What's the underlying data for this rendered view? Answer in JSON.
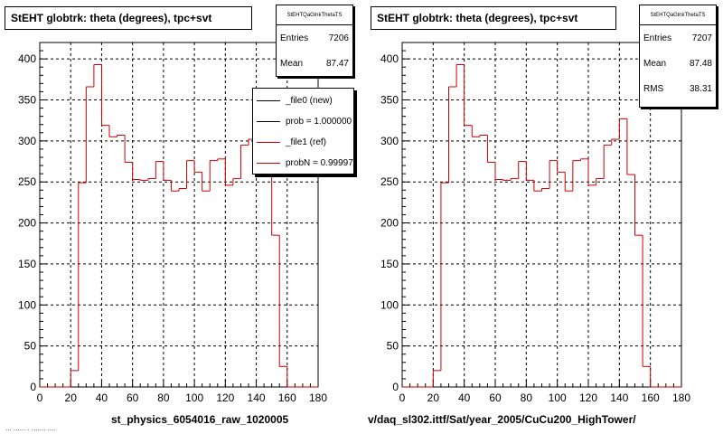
{
  "panels": [
    {
      "title": "StEHT globtrk: theta (degrees), tpc+svt",
      "stats": {
        "name": "StEHTQaGlnkThetaTS",
        "rows": [
          {
            "label": "Entries",
            "value": "7206"
          },
          {
            "label": "Mean",
            "value": "87.47"
          }
        ]
      },
      "footer": "st_physics_6054016_raw_1020005"
    },
    {
      "title": "StEHT globtrk: theta (degrees), tpc+svt",
      "stats": {
        "name": "StEHTQaGlnkThetaTS",
        "rows": [
          {
            "label": "Entries",
            "value": "7207"
          },
          {
            "label": "Mean",
            "value": "87.48"
          },
          {
            "label": "RMS",
            "value": "38.31"
          }
        ]
      },
      "footer": "v/daq_sl302.ittf/Sat/year_2005/CuCu200_HighTower/"
    }
  ],
  "legend": {
    "entries": [
      {
        "label": "_file0 (new)",
        "color": "#000000"
      },
      {
        "label": "prob = 1.000000",
        "color": "#000000"
      },
      {
        "label": "_file1 (ref)",
        "color": "#cc0000"
      },
      {
        "label": "probN = 0.999974",
        "color": "#cc0000"
      }
    ]
  },
  "cropped_text": "... ...... . ....... ....",
  "colors": {
    "histogram": "#cc0000",
    "axis": "#000000",
    "grid": "#000000"
  },
  "chart_data": [
    {
      "type": "histogram",
      "title": "StEHT globtrk: theta (degrees), tpc+svt",
      "xlabel": "st_physics_6054016_raw_1020005",
      "ylabel": "",
      "xlim": [
        0,
        180
      ],
      "ylim": [
        0,
        420
      ],
      "xticks": [
        0,
        20,
        40,
        60,
        80,
        100,
        120,
        140,
        160,
        180
      ],
      "yticks": [
        0,
        50,
        100,
        150,
        200,
        250,
        300,
        350,
        400
      ],
      "grid": true,
      "bin_width": 5,
      "series": [
        {
          "x": [
            0,
            5,
            10,
            15,
            20,
            25,
            30,
            35,
            40,
            45,
            50,
            55,
            60,
            65,
            70,
            75,
            80,
            85,
            90,
            95,
            100,
            105,
            110,
            115,
            120,
            125,
            130,
            135,
            140,
            145,
            150,
            155,
            160,
            165,
            170,
            175
          ],
          "values": [
            0,
            0,
            0,
            0,
            20,
            249,
            366,
            393,
            319,
            305,
            307,
            274,
            253,
            252,
            254,
            275,
            252,
            239,
            242,
            276,
            262,
            239,
            276,
            278,
            246,
            254,
            295,
            302,
            327,
            259,
            185,
            25,
            0,
            0,
            0,
            0
          ]
        }
      ]
    },
    {
      "type": "histogram",
      "title": "StEHT globtrk: theta (degrees), tpc+svt",
      "xlabel": "v/daq_sl302.ittf/Sat/year_2005/CuCu200_HighTower/",
      "ylabel": "",
      "xlim": [
        0,
        180
      ],
      "ylim": [
        0,
        420
      ],
      "xticks": [
        0,
        20,
        40,
        60,
        80,
        100,
        120,
        140,
        160,
        180
      ],
      "yticks": [
        0,
        50,
        100,
        150,
        200,
        250,
        300,
        350,
        400
      ],
      "grid": true,
      "bin_width": 5,
      "series": [
        {
          "x": [
            0,
            5,
            10,
            15,
            20,
            25,
            30,
            35,
            40,
            45,
            50,
            55,
            60,
            65,
            70,
            75,
            80,
            85,
            90,
            95,
            100,
            105,
            110,
            115,
            120,
            125,
            130,
            135,
            140,
            145,
            150,
            155,
            160,
            165,
            170,
            175
          ],
          "values": [
            0,
            0,
            0,
            0,
            20,
            249,
            366,
            393,
            319,
            305,
            307,
            274,
            253,
            252,
            254,
            275,
            252,
            239,
            242,
            276,
            262,
            239,
            276,
            278,
            246,
            254,
            295,
            302,
            327,
            259,
            185,
            25,
            0,
            0,
            0,
            0
          ]
        }
      ]
    }
  ]
}
